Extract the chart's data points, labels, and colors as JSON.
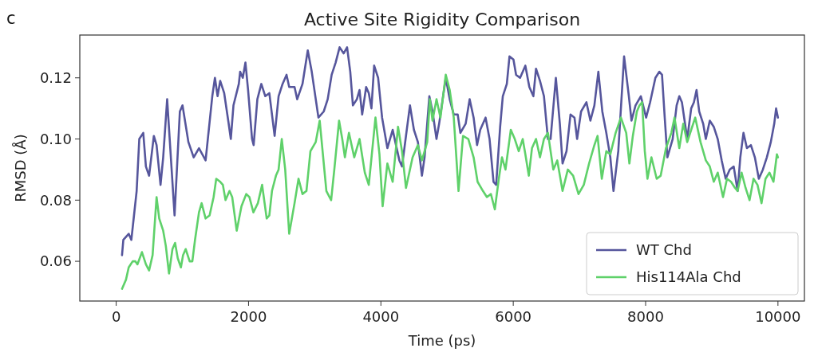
{
  "chart_data": {
    "type": "line",
    "title": "Active Site Rigidity Comparison",
    "xlabel": "Time (ps)",
    "ylabel": "RMSD (Å)",
    "annotations": [
      "c"
    ],
    "xlim": [
      -550,
      10400
    ],
    "xticks": [
      0,
      2000,
      4000,
      6000,
      8000,
      10000
    ],
    "ylim": [
      0.047,
      0.134
    ],
    "yticks": [
      {
        "value": 0.06,
        "label": "0.06"
      },
      {
        "value": 0.08,
        "label": "0.08"
      },
      {
        "value": 0.1,
        "label": "0.10"
      },
      {
        "value": 0.12,
        "label": "0.12"
      }
    ],
    "grid": false,
    "legend": "bottom right",
    "line_style": "solid",
    "marker": "none",
    "series": [
      {
        "name": "WT Chd",
        "color": "#56569c",
        "x": [
          88,
          108,
          189,
          229,
          269,
          309,
          349,
          409,
          449,
          497,
          569,
          610,
          670,
          710,
          770,
          882,
          962,
          1002,
          1091,
          1171,
          1251,
          1351,
          1452,
          1492,
          1532,
          1572,
          1632,
          1693,
          1732,
          1772,
          1853,
          1873,
          1913,
          1953,
          1993,
          2053,
          2077,
          2133,
          2193,
          2253,
          2314,
          2394,
          2454,
          2514,
          2574,
          2614,
          2695,
          2735,
          2815,
          2895,
          2955,
          3056,
          3136,
          3196,
          3256,
          3316,
          3376,
          3437,
          3489,
          3537,
          3577,
          3637,
          3677,
          3717,
          3777,
          3817,
          3857,
          3898,
          3958,
          4018,
          4098,
          4178,
          4218,
          4279,
          4319,
          4379,
          4439,
          4499,
          4559,
          4620,
          4660,
          4732,
          4780,
          4840,
          4880,
          4980,
          5040,
          5101,
          5161,
          5201,
          5281,
          5341,
          5401,
          5453,
          5501,
          5582,
          5642,
          5702,
          5742,
          5802,
          5842,
          5903,
          5943,
          6003,
          6043,
          6103,
          6183,
          6243,
          6304,
          6344,
          6404,
          6464,
          6524,
          6564,
          6644,
          6704,
          6745,
          6805,
          6865,
          6925,
          6965,
          7025,
          7106,
          7166,
          7226,
          7286,
          7346,
          7406,
          7467,
          7515,
          7587,
          7675,
          7747,
          7787,
          7848,
          7928,
          8008,
          8068,
          8148,
          8208,
          8248,
          8289,
          8329,
          8409,
          8469,
          8509,
          8549,
          8589,
          8629,
          8689,
          8730,
          8770,
          8810,
          8870,
          8910,
          8970,
          9030,
          9090,
          9150,
          9210,
          9271,
          9331,
          9391,
          9431,
          9479,
          9531,
          9591,
          9651,
          9711,
          9772,
          9832,
          9892,
          9944,
          9972,
          10000
        ],
        "values": [
          0.062,
          0.067,
          0.069,
          0.067,
          0.075,
          0.083,
          0.1,
          0.102,
          0.091,
          0.088,
          0.101,
          0.098,
          0.085,
          0.094,
          0.113,
          0.075,
          0.109,
          0.111,
          0.099,
          0.094,
          0.097,
          0.093,
          0.114,
          0.12,
          0.114,
          0.119,
          0.115,
          0.106,
          0.1,
          0.111,
          0.118,
          0.122,
          0.12,
          0.125,
          0.116,
          0.1,
          0.098,
          0.113,
          0.118,
          0.114,
          0.115,
          0.101,
          0.114,
          0.118,
          0.121,
          0.117,
          0.117,
          0.113,
          0.118,
          0.129,
          0.122,
          0.107,
          0.109,
          0.113,
          0.121,
          0.125,
          0.13,
          0.128,
          0.13,
          0.122,
          0.111,
          0.113,
          0.116,
          0.108,
          0.117,
          0.115,
          0.11,
          0.124,
          0.12,
          0.107,
          0.097,
          0.103,
          0.099,
          0.093,
          0.091,
          0.101,
          0.111,
          0.103,
          0.099,
          0.088,
          0.094,
          0.114,
          0.109,
          0.1,
          0.105,
          0.12,
          0.113,
          0.108,
          0.108,
          0.102,
          0.105,
          0.113,
          0.107,
          0.098,
          0.103,
          0.107,
          0.1,
          0.086,
          0.085,
          0.104,
          0.114,
          0.118,
          0.127,
          0.126,
          0.121,
          0.12,
          0.124,
          0.117,
          0.114,
          0.123,
          0.119,
          0.114,
          0.1,
          0.1,
          0.12,
          0.105,
          0.092,
          0.096,
          0.108,
          0.107,
          0.1,
          0.109,
          0.112,
          0.106,
          0.111,
          0.122,
          0.109,
          0.102,
          0.094,
          0.083,
          0.096,
          0.127,
          0.114,
          0.106,
          0.111,
          0.114,
          0.107,
          0.112,
          0.12,
          0.122,
          0.121,
          0.107,
          0.094,
          0.1,
          0.111,
          0.114,
          0.112,
          0.106,
          0.1,
          0.11,
          0.112,
          0.116,
          0.109,
          0.105,
          0.1,
          0.106,
          0.104,
          0.1,
          0.093,
          0.087,
          0.09,
          0.091,
          0.083,
          0.094,
          0.102,
          0.097,
          0.098,
          0.094,
          0.087,
          0.09,
          0.094,
          0.099,
          0.105,
          0.11,
          0.107
        ]
      },
      {
        "name": "His114Ala Chd",
        "color": "#5fd16a",
        "x": [
          88,
          148,
          189,
          249,
          289,
          321,
          389,
          449,
          497,
          550,
          610,
          650,
          710,
          750,
          798,
          850,
          890,
          930,
          978,
          1010,
          1050,
          1110,
          1151,
          1191,
          1251,
          1291,
          1351,
          1411,
          1472,
          1512,
          1572,
          1612,
          1652,
          1712,
          1753,
          1821,
          1893,
          1965,
          2013,
          2073,
          2141,
          2205,
          2274,
          2314,
          2354,
          2414,
          2454,
          2502,
          2554,
          2614,
          2695,
          2755,
          2815,
          2875,
          2935,
          3015,
          3075,
          3176,
          3248,
          3296,
          3368,
          3416,
          3456,
          3517,
          3597,
          3677,
          3757,
          3817,
          3918,
          3978,
          4026,
          4098,
          4178,
          4259,
          4319,
          4379,
          4479,
          4559,
          4620,
          4700,
          4740,
          4780,
          4840,
          4900,
          4980,
          5040,
          5101,
          5173,
          5241,
          5321,
          5401,
          5461,
          5542,
          5602,
          5662,
          5722,
          5782,
          5830,
          5883,
          5963,
          6023,
          6083,
          6143,
          6183,
          6235,
          6283,
          6344,
          6404,
          6464,
          6524,
          6605,
          6665,
          6745,
          6825,
          6905,
          6986,
          7066,
          7146,
          7226,
          7274,
          7338,
          7406,
          7467,
          7547,
          7627,
          7707,
          7755,
          7807,
          7868,
          7908,
          7948,
          7988,
          8028,
          8088,
          8168,
          8228,
          8308,
          8389,
          8437,
          8509,
          8569,
          8629,
          8689,
          8750,
          8830,
          8910,
          8970,
          9030,
          9090,
          9170,
          9230,
          9291,
          9351,
          9391,
          9451,
          9511,
          9571,
          9631,
          9691,
          9752,
          9812,
          9872,
          9932,
          9984,
          10000
        ],
        "values": [
          0.051,
          0.054,
          0.058,
          0.06,
          0.06,
          0.059,
          0.063,
          0.059,
          0.057,
          0.062,
          0.081,
          0.074,
          0.07,
          0.065,
          0.056,
          0.064,
          0.066,
          0.061,
          0.058,
          0.062,
          0.064,
          0.06,
          0.06,
          0.067,
          0.076,
          0.079,
          0.074,
          0.075,
          0.081,
          0.087,
          0.086,
          0.085,
          0.08,
          0.083,
          0.081,
          0.07,
          0.078,
          0.082,
          0.081,
          0.076,
          0.079,
          0.085,
          0.074,
          0.075,
          0.083,
          0.088,
          0.09,
          0.1,
          0.09,
          0.069,
          0.079,
          0.087,
          0.082,
          0.083,
          0.096,
          0.099,
          0.106,
          0.083,
          0.08,
          0.09,
          0.106,
          0.1,
          0.094,
          0.102,
          0.094,
          0.1,
          0.089,
          0.085,
          0.107,
          0.095,
          0.078,
          0.092,
          0.086,
          0.104,
          0.096,
          0.084,
          0.094,
          0.098,
          0.093,
          0.099,
          0.113,
          0.106,
          0.113,
          0.107,
          0.121,
          0.116,
          0.107,
          0.083,
          0.101,
          0.1,
          0.094,
          0.086,
          0.083,
          0.081,
          0.082,
          0.077,
          0.087,
          0.094,
          0.09,
          0.103,
          0.1,
          0.096,
          0.1,
          0.095,
          0.088,
          0.097,
          0.1,
          0.094,
          0.1,
          0.102,
          0.09,
          0.093,
          0.083,
          0.09,
          0.088,
          0.082,
          0.085,
          0.092,
          0.098,
          0.101,
          0.087,
          0.096,
          0.095,
          0.102,
          0.107,
          0.102,
          0.092,
          0.101,
          0.109,
          0.111,
          0.112,
          0.096,
          0.087,
          0.094,
          0.087,
          0.088,
          0.097,
          0.102,
          0.107,
          0.097,
          0.105,
          0.099,
          0.103,
          0.107,
          0.099,
          0.093,
          0.091,
          0.086,
          0.089,
          0.081,
          0.087,
          0.086,
          0.084,
          0.083,
          0.089,
          0.084,
          0.08,
          0.087,
          0.085,
          0.079,
          0.087,
          0.089,
          0.086,
          0.095,
          0.094
        ]
      }
    ]
  }
}
